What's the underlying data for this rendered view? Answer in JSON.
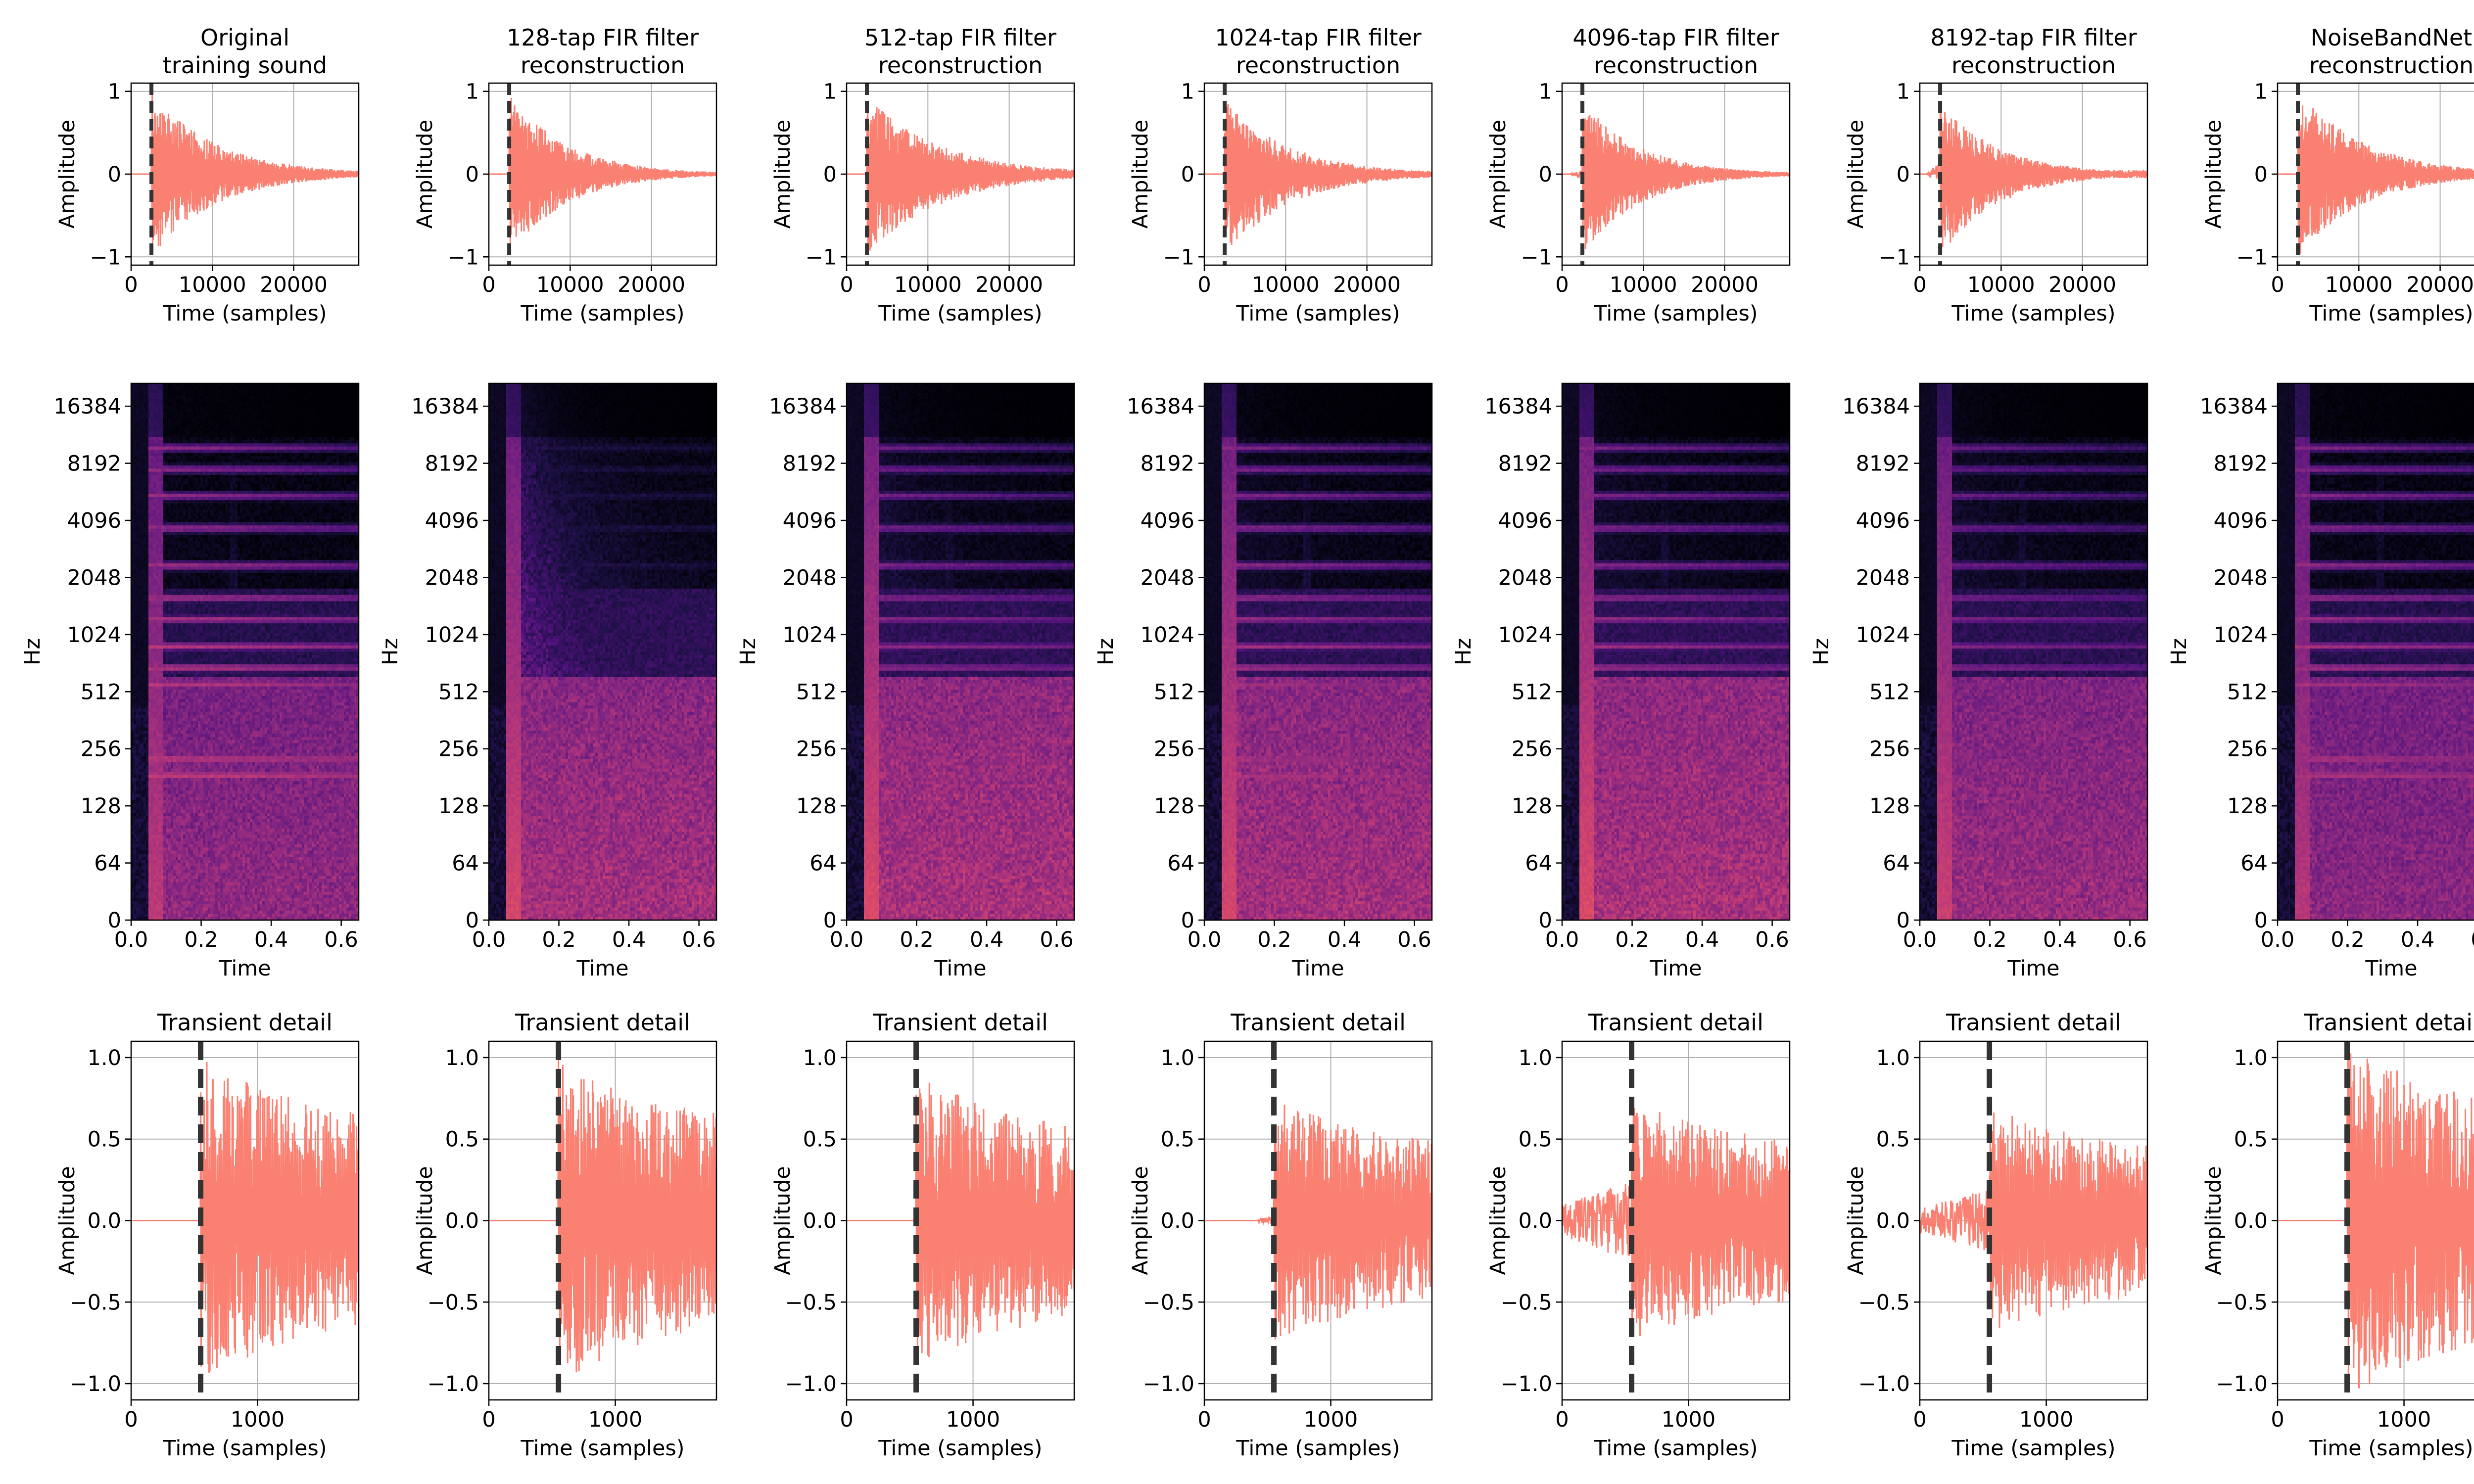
{
  "figure": {
    "columns": [
      {
        "title_lines": [
          "Original",
          "training sound"
        ]
      },
      {
        "title_lines": [
          "128-tap FIR filter",
          "reconstruction"
        ]
      },
      {
        "title_lines": [
          "512-tap FIR filter",
          "reconstruction"
        ]
      },
      {
        "title_lines": [
          "1024-tap FIR filter",
          "reconstruction"
        ]
      },
      {
        "title_lines": [
          "4096-tap FIR filter",
          "reconstruction"
        ]
      },
      {
        "title_lines": [
          "8192-tap FIR filter",
          "reconstruction"
        ]
      },
      {
        "title_lines": [
          "NoiseBandNet",
          "reconstruction"
        ]
      }
    ]
  },
  "chart_data": [
    {
      "type": "line",
      "row": "waveform",
      "title": "",
      "xlabel": "Time (samples)",
      "ylabel": "Amplitude",
      "xlim": [
        0,
        28000
      ],
      "ylim": [
        -1.1,
        1.1
      ],
      "xticks": [
        0,
        10000,
        20000
      ],
      "xtick_labels": [
        "0",
        "10000",
        "20000"
      ],
      "yticks": [
        -1,
        0,
        1
      ],
      "ytick_labels": [
        "−1",
        "0",
        "1"
      ],
      "grid": true,
      "line_color": "#fa8072",
      "onset_marker": {
        "x": 2500,
        "style": "dashed",
        "color": "#333333"
      },
      "series": [
        {
          "column": 0,
          "peak_amplitude": [
            1.0,
            -1.0
          ],
          "decay_samples": 8000,
          "noise_floor": 0.02,
          "pre_onset_amplitude": 0.0
        },
        {
          "column": 1,
          "peak_amplitude": [
            1.0,
            -1.0
          ],
          "decay_samples": 7000,
          "noise_floor": 0.02,
          "pre_onset_amplitude": 0.0
        },
        {
          "column": 2,
          "peak_amplitude": [
            0.95,
            -1.0
          ],
          "decay_samples": 9000,
          "noise_floor": 0.03,
          "pre_onset_amplitude": 0.0
        },
        {
          "column": 3,
          "peak_amplitude": [
            0.9,
            -1.0
          ],
          "decay_samples": 8000,
          "noise_floor": 0.03,
          "pre_onset_amplitude": 0.0
        },
        {
          "column": 4,
          "peak_amplitude": [
            0.9,
            -1.0
          ],
          "decay_samples": 7000,
          "noise_floor": 0.03,
          "pre_onset_amplitude": 0.05
        },
        {
          "column": 5,
          "peak_amplitude": [
            0.9,
            -1.0
          ],
          "decay_samples": 7000,
          "noise_floor": 0.05,
          "pre_onset_amplitude": 0.15
        },
        {
          "column": 6,
          "peak_amplitude": [
            1.05,
            -1.0
          ],
          "decay_samples": 8000,
          "noise_floor": 0.02,
          "pre_onset_amplitude": 0.0
        }
      ]
    },
    {
      "type": "heatmap",
      "row": "spectrogram",
      "title": "",
      "xlabel": "Time",
      "ylabel": "Hz",
      "xlim": [
        0,
        0.65
      ],
      "xticks": [
        0.0,
        0.2,
        0.4,
        0.6
      ],
      "xtick_labels": [
        "0.0",
        "0.2",
        "0.4",
        "0.6"
      ],
      "yscale": "log2",
      "yticks": [
        0,
        64,
        128,
        256,
        512,
        1024,
        2048,
        4096,
        8192,
        16384
      ],
      "ytick_labels": [
        "0",
        "64",
        "128",
        "256",
        "512",
        "1024",
        "2048",
        "4096",
        "8192",
        "16384"
      ],
      "colormap": "magma",
      "onset_time": 0.05,
      "series": [
        {
          "column": 0,
          "brightness": 0.62,
          "diffuse_noise": 0.1,
          "harmonic_strength": 1.0
        },
        {
          "column": 1,
          "brightness": 0.7,
          "diffuse_noise": 0.85,
          "harmonic_strength": 0.25
        },
        {
          "column": 2,
          "brightness": 0.72,
          "diffuse_noise": 0.35,
          "harmonic_strength": 0.7
        },
        {
          "column": 3,
          "brightness": 0.7,
          "diffuse_noise": 0.25,
          "harmonic_strength": 0.8
        },
        {
          "column": 4,
          "brightness": 0.72,
          "diffuse_noise": 0.3,
          "harmonic_strength": 0.75
        },
        {
          "column": 5,
          "brightness": 0.66,
          "diffuse_noise": 0.3,
          "harmonic_strength": 0.7
        },
        {
          "column": 6,
          "brightness": 0.6,
          "diffuse_noise": 0.1,
          "harmonic_strength": 0.95
        }
      ]
    },
    {
      "type": "line",
      "row": "transient",
      "title": "Transient detail",
      "xlabel": "Time (samples)",
      "ylabel": "Amplitude",
      "xlim": [
        0,
        1800
      ],
      "ylim": [
        -1.1,
        1.1
      ],
      "xticks": [
        0,
        1000
      ],
      "xtick_labels": [
        "0",
        "1000"
      ],
      "yticks": [
        -1.0,
        -0.5,
        0.0,
        0.5,
        1.0
      ],
      "ytick_labels": [
        "−1.0",
        "−0.5",
        "0.0",
        "0.5",
        "1.0"
      ],
      "grid": true,
      "line_color": "#fa8072",
      "onset_marker": {
        "x": 550,
        "style": "dashed",
        "color": "#333333"
      },
      "series": [
        {
          "column": 0,
          "onset": 550,
          "peak_amplitude": 1.0,
          "pre_onset_amplitude": 0.0
        },
        {
          "column": 1,
          "onset": 550,
          "peak_amplitude": 1.0,
          "pre_onset_amplitude": 0.0
        },
        {
          "column": 2,
          "onset": 520,
          "peak_amplitude": 0.9,
          "pre_onset_amplitude": 0.0
        },
        {
          "column": 3,
          "onset": 420,
          "peak_amplitude": 0.75,
          "pre_onset_amplitude": 0.03
        },
        {
          "column": 4,
          "onset": 0,
          "peak_amplitude": 0.75,
          "pre_onset_amplitude": 0.25
        },
        {
          "column": 5,
          "onset": 0,
          "peak_amplitude": 0.7,
          "pre_onset_amplitude": 0.2
        },
        {
          "column": 6,
          "onset": 550,
          "peak_amplitude": 1.1,
          "pre_onset_amplitude": 0.0
        }
      ]
    }
  ]
}
